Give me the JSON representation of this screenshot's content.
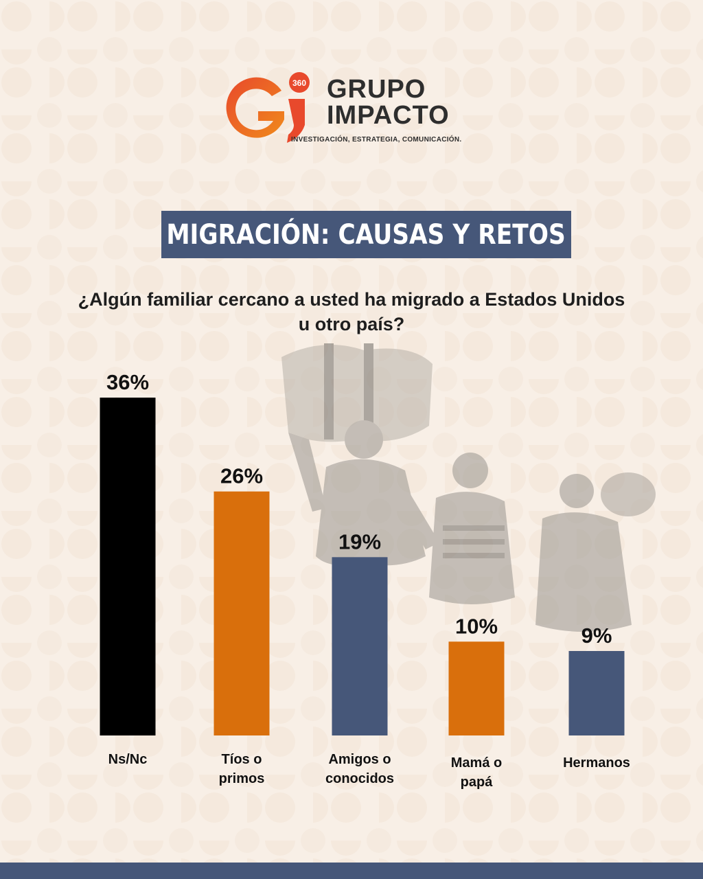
{
  "brand": {
    "logo_mark": "Gi",
    "logo_badge": "360",
    "name_line1": "GRUPO",
    "name_line2": "IMPACTO",
    "tagline": "INVESTIGACIÓN, ESTRATEGIA, COMUNICACIÓN."
  },
  "header": {
    "title": "MIGRACIÓN: CAUSAS Y RETOS"
  },
  "question": "¿Algún familiar cercano a usted ha migrado a Estados Unidos u otro país?",
  "colors": {
    "background": "#f8efe6",
    "navy": "#465779",
    "orange": "#d96f0c",
    "black": "#000000",
    "logo_red": "#e8492c"
  },
  "chart_data": {
    "type": "bar",
    "categories": [
      "Ns/Nc",
      "Tíos o primos",
      "Amigos o conocidos",
      "Mamá o papá",
      "Hermanos"
    ],
    "category_lines": [
      [
        "Ns/Nc"
      ],
      [
        "Tíos o",
        "primos"
      ],
      [
        "Amigos o",
        "conocidos"
      ],
      [
        "Mamá o",
        "papá"
      ],
      [
        "Hermanos"
      ]
    ],
    "values": [
      36,
      26,
      19,
      10,
      9
    ],
    "value_labels": [
      "36%",
      "26%",
      "19%",
      "10%",
      "9%"
    ],
    "colors": [
      "#000000",
      "#d96f0c",
      "#465779",
      "#d96f0c",
      "#465779"
    ],
    "ylim": [
      0,
      36
    ],
    "grid": false
  }
}
